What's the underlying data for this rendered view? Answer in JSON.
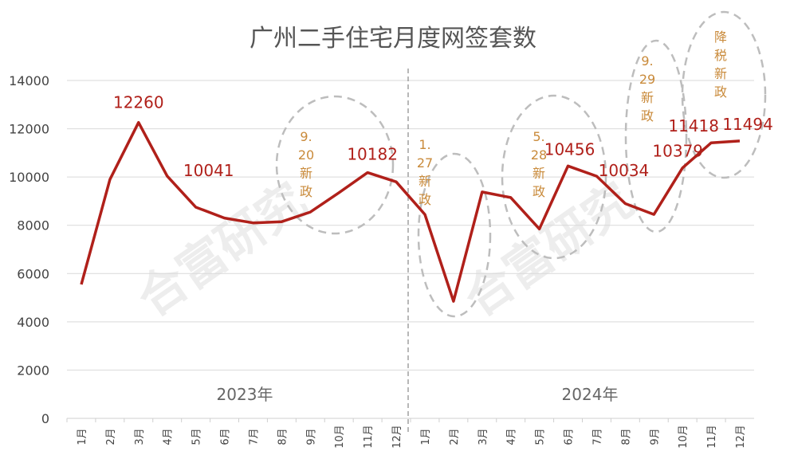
{
  "chart_data": {
    "type": "line",
    "title": "广州二手住宅月度网签套数",
    "ylim": [
      0,
      14000
    ],
    "yticks": [
      0,
      2000,
      4000,
      6000,
      8000,
      10000,
      12000,
      14000
    ],
    "grid": "horizontal",
    "categories": [
      "1月",
      "2月",
      "3月",
      "4月",
      "5月",
      "6月",
      "7月",
      "8月",
      "9月",
      "10月",
      "11月",
      "12月",
      "1月",
      "2月",
      "3月",
      "4月",
      "5月",
      "6月",
      "7月",
      "8月",
      "9月",
      "10月",
      "11月",
      "12月"
    ],
    "year_groups": [
      "2023年",
      "2024年"
    ],
    "series": [
      {
        "color": "#b0201a",
        "values": [
          5550,
          9900,
          12260,
          10041,
          8750,
          8300,
          8100,
          8150,
          8550,
          9350,
          10182,
          9800,
          8450,
          4850,
          9380,
          9150,
          7850,
          10456,
          10034,
          8900,
          8450,
          10379,
          11418,
          11494
        ]
      }
    ],
    "data_labels": [
      {
        "index": 2,
        "text": "12260"
      },
      {
        "index": 3,
        "text": "10041"
      },
      {
        "index": 10,
        "text": "10182"
      },
      {
        "index": 17,
        "text": "10456"
      },
      {
        "index": 18,
        "text": "10034"
      },
      {
        "index": 21,
        "text": "10379"
      },
      {
        "index": 22,
        "text": "11418"
      },
      {
        "index": 23,
        "text": "11494"
      }
    ],
    "annotations": [
      {
        "lines": [
          "9.",
          "20",
          "新",
          "政"
        ],
        "color": "#c98a3a"
      },
      {
        "lines": [
          "1.",
          "27",
          "新",
          "政"
        ],
        "color": "#c98a3a"
      },
      {
        "lines": [
          "5.",
          "28",
          "新",
          "政"
        ],
        "color": "#c98a3a"
      },
      {
        "lines": [
          "9.",
          "29",
          "新",
          "政"
        ],
        "color": "#c98a3a"
      },
      {
        "lines": [
          "降",
          "税",
          "新",
          "政"
        ],
        "color": "#c98a3a"
      }
    ],
    "watermark": "合富研究"
  }
}
